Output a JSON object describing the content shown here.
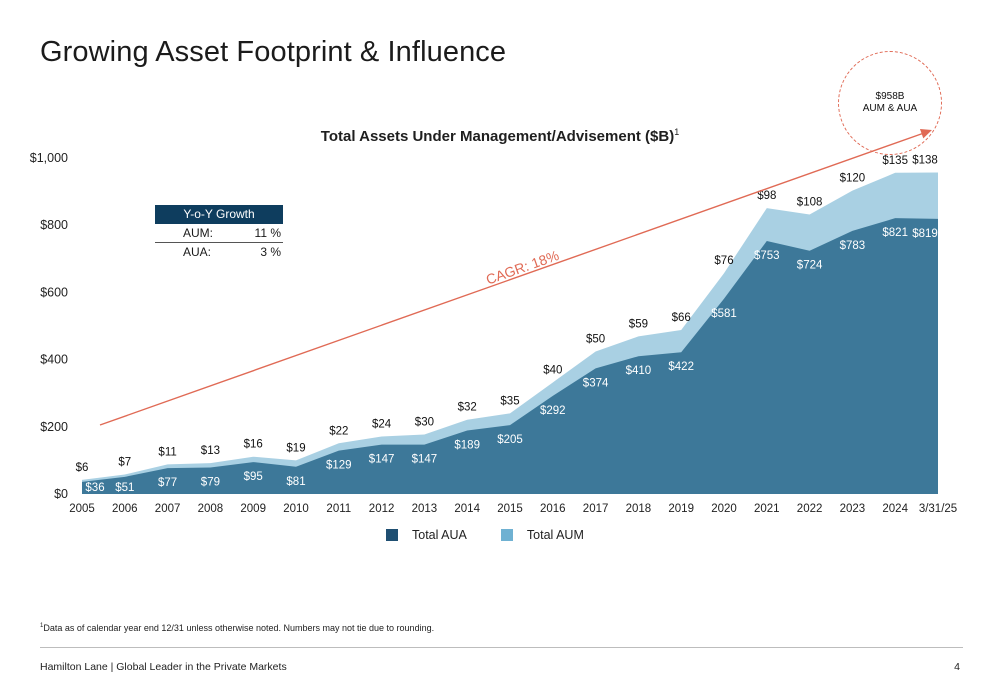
{
  "page": {
    "title": "Growing Asset Footprint & Influence",
    "footnote_marker": "1",
    "footnote": "Data as of calendar year end 12/31 unless otherwise noted. Numbers may not tie due to rounding.",
    "footer": "Hamilton Lane  |  Global Leader in the Private Markets",
    "page_number": "4"
  },
  "badge": {
    "line1": "$958B",
    "line2": "AUM & AUA"
  },
  "yoy": {
    "header": "Y-o-Y Growth",
    "rows": [
      {
        "label": "AUM:",
        "value": "11 %"
      },
      {
        "label": "AUA:",
        "value": "3 %"
      }
    ]
  },
  "chart_data": {
    "type": "area",
    "title": "Total Assets Under Management/Advisement ($B)",
    "title_footnote": "1",
    "categories": [
      "2005",
      "2006",
      "2007",
      "2008",
      "2009",
      "2010",
      "2011",
      "2012",
      "2013",
      "2014",
      "2015",
      "2016",
      "2017",
      "2018",
      "2019",
      "2020",
      "2021",
      "2022",
      "2023",
      "2024",
      "3/31/25"
    ],
    "stacked": true,
    "series": [
      {
        "name": "Total AUA",
        "color": "#3d7899",
        "values": [
          36,
          51,
          77,
          79,
          95,
          81,
          129,
          147,
          147,
          189,
          205,
          292,
          374,
          410,
          422,
          581,
          753,
          724,
          783,
          821,
          819
        ],
        "labels": [
          "$36",
          "$51",
          "$77",
          "$79",
          "$95",
          "$81",
          "$129",
          "$147",
          "$147",
          "$189",
          "$205",
          "$292",
          "$374",
          "$410",
          "$422",
          "$581",
          "$753",
          "$724",
          "$783",
          "$821",
          "$819"
        ]
      },
      {
        "name": "Total AUM",
        "color": "#a9d0e3",
        "values": [
          6,
          7,
          11,
          13,
          16,
          19,
          22,
          24,
          30,
          32,
          35,
          40,
          50,
          59,
          66,
          76,
          98,
          108,
          120,
          135,
          138
        ],
        "labels": [
          "$6",
          "$7",
          "$11",
          "$13",
          "$16",
          "$19",
          "$22",
          "$24",
          "$30",
          "$32",
          "$35",
          "$40",
          "$50",
          "$59",
          "$66",
          "$76",
          "$98",
          "$108",
          "$120",
          "$135",
          "$138"
        ]
      }
    ],
    "ylim": [
      0,
      1000
    ],
    "y_ticks": [
      0,
      200,
      400,
      600,
      800,
      1000
    ],
    "y_tick_labels": [
      "$0",
      "$200",
      "$400",
      "$600",
      "$800",
      "$1,000"
    ],
    "legend": {
      "placement": "bottom",
      "items": [
        {
          "label": "Total AUA",
          "color": "#1f4f72"
        },
        {
          "label": "Total AUM",
          "color": "#6fb1d2"
        }
      ]
    },
    "annotation": {
      "text": "CAGR: 18%",
      "color": "#e06a55"
    },
    "grid": false
  }
}
